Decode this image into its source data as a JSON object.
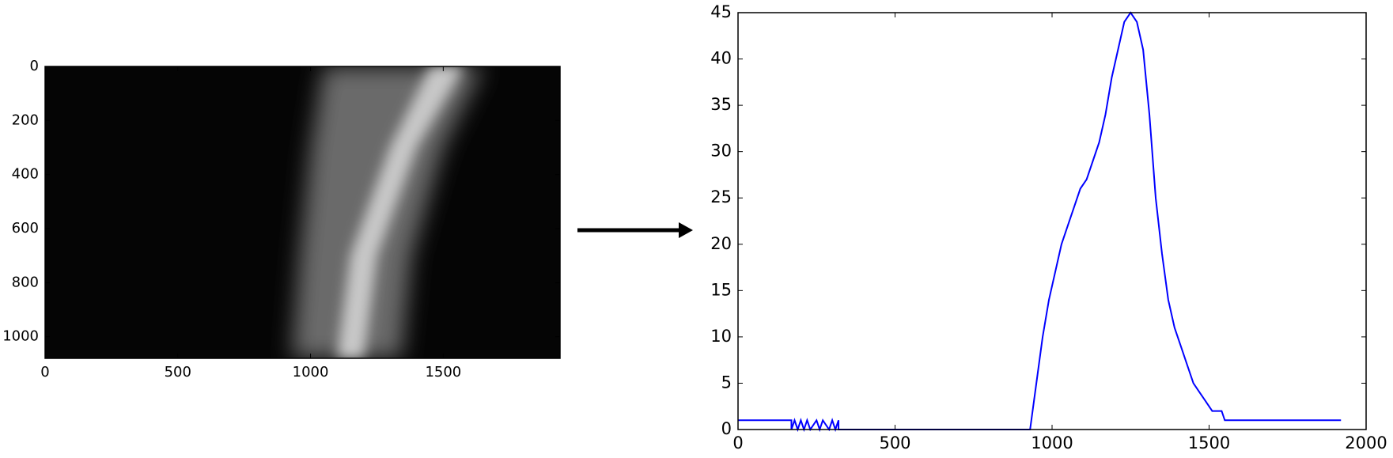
{
  "chart_data": [
    {
      "type": "image",
      "xlim": [
        0,
        1940
      ],
      "ylim": [
        1080,
        0
      ],
      "xticks": [
        0,
        500,
        1000,
        1500
      ],
      "yticks": [
        0,
        200,
        400,
        600,
        800,
        1000
      ]
    },
    {
      "type": "line",
      "xlim": [
        0,
        2000
      ],
      "ylim": [
        0,
        45
      ],
      "xticks": [
        0,
        500,
        1000,
        1500,
        2000
      ],
      "yticks": [
        0,
        5,
        10,
        15,
        20,
        25,
        30,
        35,
        40,
        45
      ],
      "series": [
        {
          "color": "#0000ff",
          "x": [
            0,
            170,
            170,
            180,
            190,
            200,
            210,
            220,
            230,
            250,
            260,
            270,
            290,
            300,
            310,
            320,
            320,
            930,
            950,
            970,
            990,
            1010,
            1030,
            1050,
            1070,
            1090,
            1110,
            1130,
            1150,
            1170,
            1190,
            1210,
            1230,
            1250,
            1270,
            1290,
            1310,
            1330,
            1350,
            1370,
            1390,
            1410,
            1430,
            1450,
            1470,
            1490,
            1510,
            1540,
            1550,
            1580,
            1920
          ],
          "values": [
            1,
            1,
            0,
            1,
            0,
            1,
            0,
            1,
            0,
            1,
            0,
            1,
            0,
            1,
            0,
            1,
            0,
            0,
            5,
            10,
            14,
            17,
            20,
            22,
            24,
            26,
            27,
            29,
            31,
            34,
            38,
            41,
            44,
            45,
            44,
            41,
            34,
            25,
            19,
            14,
            11,
            9,
            7,
            5,
            4,
            3,
            2,
            2,
            1,
            1,
            1
          ]
        }
      ]
    }
  ]
}
